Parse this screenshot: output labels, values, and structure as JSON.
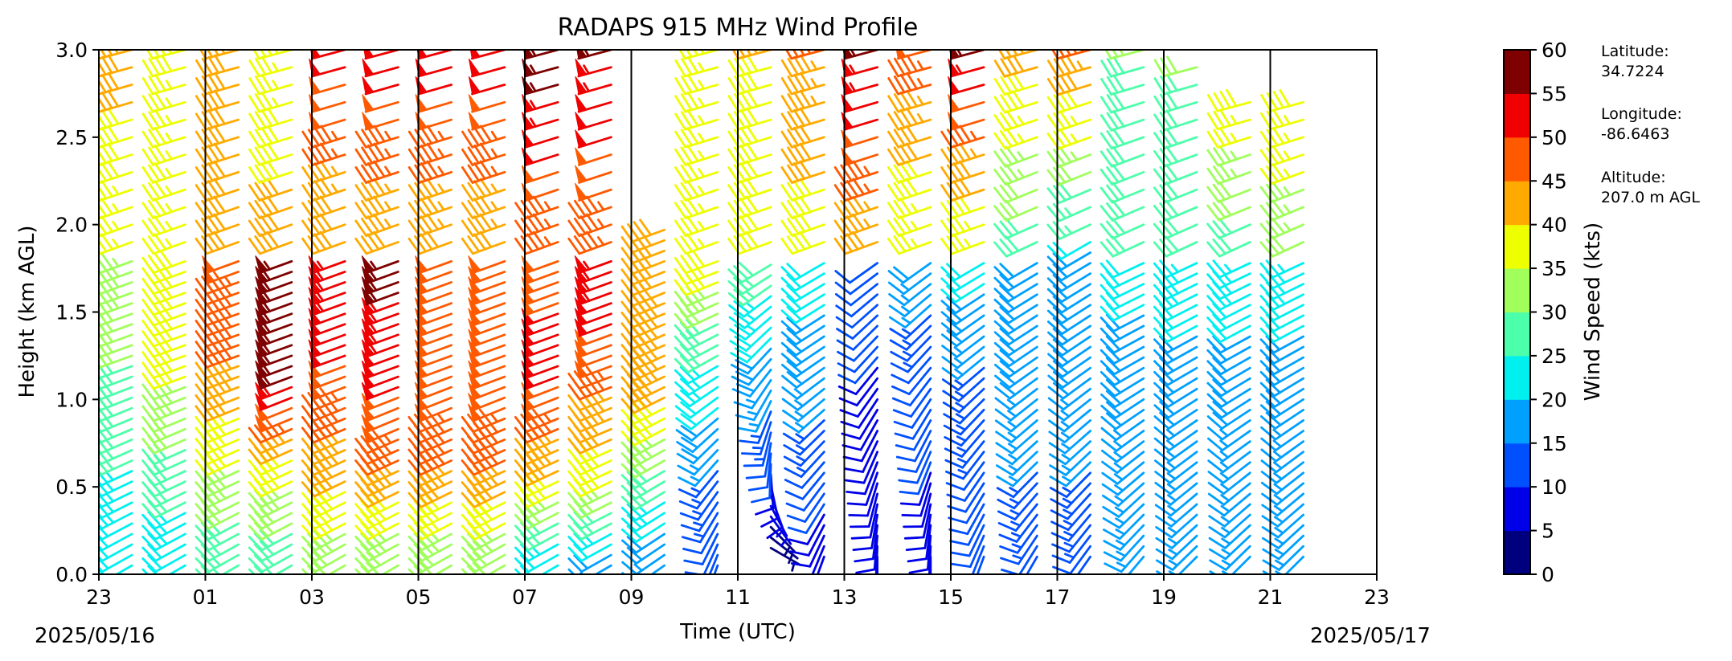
{
  "chart_data": {
    "type": "wind-barb-profile",
    "title": "RADAPS 915 MHz Wind Profile",
    "xlabel": "Time (UTC)",
    "ylabel": "Height (km AGL)",
    "ylim": [
      0.0,
      3.0
    ],
    "y_ticks": [
      "0.0",
      "0.5",
      "1.0",
      "1.5",
      "2.0",
      "2.5",
      "3.0"
    ],
    "x_ticks": [
      "23",
      "01",
      "03",
      "05",
      "07",
      "09",
      "11",
      "13",
      "15",
      "17",
      "19",
      "21",
      "23"
    ],
    "start_date_label": "2025/05/16",
    "end_date_label": "2025/05/17",
    "vertical_gridlines": true,
    "colorbar": {
      "label": "Wind Speed (kts)",
      "ticks": [
        "0",
        "5",
        "10",
        "15",
        "20",
        "25",
        "30",
        "35",
        "40",
        "45",
        "50",
        "55",
        "60"
      ],
      "colors": [
        "#00007f",
        "#0000e8",
        "#0050ff",
        "#00a0ff",
        "#00f0f0",
        "#4cffaa",
        "#a0ff5a",
        "#eeff00",
        "#ffaa00",
        "#ff5a00",
        "#f00000",
        "#7f0000"
      ]
    },
    "station": {
      "latitude_label": "Latitude:",
      "latitude": "34.7224",
      "longitude_label": "Longitude:",
      "longitude": "-86.6463",
      "altitude_label": "Altitude:",
      "altitude": "207.0 m AGL"
    },
    "profiles": [
      {
        "time": "23:30",
        "low": [
          [
            0.05,
            20,
            240
          ],
          [
            0.6,
            25,
            245
          ],
          [
            1.2,
            30,
            250
          ],
          [
            1.8,
            35,
            250
          ]
        ],
        "high": [
          [
            1.9,
            35,
            250
          ],
          [
            3.0,
            42,
            255
          ]
        ]
      },
      {
        "time": "00:30",
        "low": [
          [
            0.05,
            20,
            240
          ],
          [
            0.6,
            28,
            245
          ],
          [
            1.2,
            36,
            250
          ],
          [
            1.8,
            38,
            250
          ]
        ],
        "high": [
          [
            1.9,
            35,
            250
          ],
          [
            3.0,
            38,
            255
          ]
        ]
      },
      {
        "time": "01:30",
        "low": [
          [
            0.05,
            25,
            240
          ],
          [
            0.6,
            35,
            245
          ],
          [
            1.2,
            45,
            250
          ],
          [
            1.8,
            48,
            250
          ]
        ],
        "high": [
          [
            1.9,
            40,
            250
          ],
          [
            3.0,
            40,
            255
          ]
        ]
      },
      {
        "time": "02:30",
        "low": [
          [
            0.05,
            25,
            240
          ],
          [
            0.6,
            38,
            245
          ],
          [
            1.2,
            58,
            250
          ],
          [
            1.8,
            55,
            250
          ]
        ],
        "high": [
          [
            1.9,
            42,
            250
          ],
          [
            3.0,
            35,
            255
          ]
        ]
      },
      {
        "time": "03:30",
        "low": [
          [
            0.05,
            30,
            240
          ],
          [
            0.6,
            42,
            245
          ],
          [
            1.2,
            50,
            250
          ],
          [
            1.8,
            55,
            250
          ]
        ],
        "high": [
          [
            1.9,
            40,
            250
          ],
          [
            3.0,
            52,
            255
          ]
        ]
      },
      {
        "time": "04:30",
        "low": [
          [
            0.05,
            30,
            240
          ],
          [
            0.6,
            45,
            245
          ],
          [
            1.2,
            52,
            250
          ],
          [
            1.8,
            57,
            250
          ]
        ],
        "high": [
          [
            1.9,
            42,
            250
          ],
          [
            3.0,
            52,
            255
          ]
        ]
      },
      {
        "time": "05:30",
        "low": [
          [
            0.05,
            30,
            240
          ],
          [
            0.6,
            45,
            245
          ],
          [
            1.2,
            50,
            250
          ],
          [
            1.8,
            48,
            250
          ]
        ],
        "high": [
          [
            1.9,
            42,
            250
          ],
          [
            3.0,
            52,
            255
          ]
        ]
      },
      {
        "time": "06:30",
        "low": [
          [
            0.05,
            30,
            240
          ],
          [
            0.6,
            45,
            245
          ],
          [
            1.2,
            50,
            250
          ],
          [
            1.8,
            48,
            250
          ]
        ],
        "high": [
          [
            1.9,
            42,
            250
          ],
          [
            3.0,
            52,
            255
          ]
        ]
      },
      {
        "time": "07:30",
        "low": [
          [
            0.05,
            20,
            240
          ],
          [
            0.6,
            42,
            245
          ],
          [
            1.2,
            52,
            250
          ],
          [
            1.8,
            48,
            250
          ]
        ],
        "high": [
          [
            1.9,
            45,
            250
          ],
          [
            3.0,
            58,
            255
          ]
        ]
      },
      {
        "time": "08:30",
        "low": [
          [
            0.05,
            15,
            240
          ],
          [
            0.6,
            38,
            245
          ],
          [
            1.2,
            48,
            250
          ],
          [
            1.8,
            55,
            250
          ]
        ],
        "high": [
          [
            1.9,
            45,
            250
          ],
          [
            3.0,
            55,
            255
          ]
        ]
      },
      {
        "time": "09:30",
        "low": [
          [
            0.05,
            15,
            235
          ],
          [
            0.6,
            30,
            240
          ],
          [
            1.2,
            45,
            245
          ],
          [
            2.0,
            40,
            250
          ]
        ],
        "high": []
      },
      {
        "time": "10:30",
        "low": [
          [
            0.05,
            10,
            200
          ],
          [
            0.6,
            15,
            220
          ],
          [
            1.2,
            25,
            240
          ],
          [
            1.8,
            38,
            250
          ]
        ],
        "high": [
          [
            1.9,
            35,
            250
          ],
          [
            3.0,
            35,
            255
          ]
        ]
      },
      {
        "time": "11:30",
        "low": [
          [
            0.15,
            3,
            120
          ],
          [
            0.6,
            10,
            180
          ],
          [
            1.2,
            18,
            220
          ],
          [
            1.8,
            28,
            240
          ]
        ],
        "high": [
          [
            1.9,
            38,
            250
          ],
          [
            3.0,
            40,
            255
          ]
        ]
      },
      {
        "time": "12:30",
        "low": [
          [
            0.1,
            8,
            200
          ],
          [
            0.6,
            12,
            220
          ],
          [
            1.2,
            18,
            235
          ],
          [
            1.8,
            22,
            240
          ]
        ],
        "high": [
          [
            1.9,
            38,
            250
          ],
          [
            3.0,
            45,
            255
          ]
        ]
      },
      {
        "time": "13:30",
        "low": [
          [
            0.1,
            8,
            180
          ],
          [
            0.6,
            8,
            200
          ],
          [
            1.2,
            10,
            220
          ],
          [
            1.8,
            12,
            235
          ]
        ],
        "high": [
          [
            1.9,
            42,
            250
          ],
          [
            3.0,
            55,
            255
          ]
        ]
      },
      {
        "time": "14:30",
        "low": [
          [
            0.1,
            8,
            180
          ],
          [
            0.6,
            10,
            200
          ],
          [
            1.2,
            12,
            220
          ],
          [
            1.8,
            18,
            235
          ]
        ],
        "high": [
          [
            1.9,
            35,
            250
          ],
          [
            3.0,
            48,
            255
          ]
        ]
      },
      {
        "time": "15:30",
        "low": [
          [
            0.1,
            10,
            200
          ],
          [
            0.6,
            12,
            215
          ],
          [
            1.2,
            15,
            230
          ],
          [
            1.8,
            22,
            240
          ]
        ],
        "high": [
          [
            1.9,
            35,
            250
          ],
          [
            3.0,
            55,
            255
          ]
        ]
      },
      {
        "time": "16:30",
        "low": [
          [
            0.1,
            12,
            210
          ],
          [
            0.6,
            15,
            225
          ],
          [
            1.2,
            18,
            235
          ],
          [
            1.8,
            20,
            240
          ]
        ],
        "high": [
          [
            1.9,
            28,
            245
          ],
          [
            3.0,
            42,
            255
          ]
        ]
      },
      {
        "time": "17:30",
        "low": [
          [
            0.1,
            12,
            215
          ],
          [
            0.6,
            15,
            225
          ],
          [
            1.2,
            18,
            235
          ],
          [
            1.9,
            20,
            240
          ]
        ],
        "high": [
          [
            2.0,
            25,
            245
          ],
          [
            3.0,
            45,
            255
          ]
        ]
      },
      {
        "time": "18:30",
        "low": [
          [
            0.1,
            15,
            220
          ],
          [
            0.6,
            17,
            230
          ],
          [
            1.2,
            18,
            240
          ],
          [
            1.8,
            22,
            245
          ]
        ],
        "high": [
          [
            1.9,
            28,
            245
          ],
          [
            3.0,
            30,
            255
          ]
        ]
      },
      {
        "time": "19:30",
        "low": [
          [
            0.1,
            15,
            225
          ],
          [
            0.6,
            17,
            232
          ],
          [
            1.2,
            18,
            240
          ],
          [
            1.8,
            25,
            245
          ]
        ],
        "high": [
          [
            1.9,
            28,
            245
          ],
          [
            2.9,
            30,
            255
          ]
        ]
      },
      {
        "time": "20:30",
        "low": [
          [
            0.1,
            15,
            225
          ],
          [
            0.6,
            17,
            232
          ],
          [
            1.2,
            18,
            240
          ],
          [
            1.8,
            25,
            245
          ]
        ],
        "high": [
          [
            1.9,
            28,
            245
          ],
          [
            2.7,
            38,
            255
          ]
        ]
      },
      {
        "time": "21:30",
        "low": [
          [
            0.1,
            15,
            225
          ],
          [
            0.6,
            17,
            232
          ],
          [
            1.2,
            18,
            240
          ],
          [
            1.8,
            25,
            245
          ]
        ],
        "high": [
          [
            1.9,
            32,
            245
          ],
          [
            2.7,
            38,
            255
          ]
        ]
      }
    ]
  }
}
